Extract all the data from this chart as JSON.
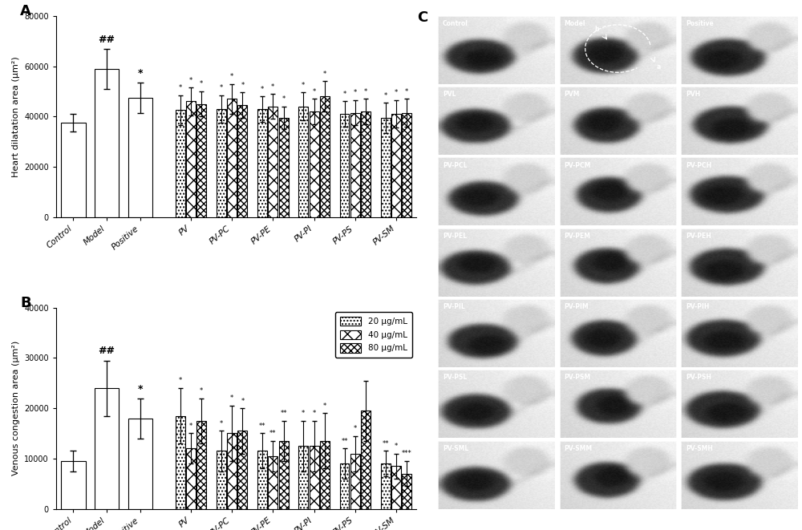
{
  "chart_A": {
    "ylabel": "Heart dilatation area (μm²)",
    "ylim": [
      0,
      80000
    ],
    "yticks": [
      0,
      20000,
      40000,
      60000,
      80000
    ],
    "single_bars": {
      "Control": {
        "mean": 37500,
        "err": 3500,
        "sig": ""
      },
      "Model": {
        "mean": 59000,
        "err": 8000,
        "sig": "##"
      },
      "Positive": {
        "mean": 47500,
        "err": 6000,
        "sig": "*"
      }
    },
    "group_bars": {
      "PV": {
        "low": 42500,
        "mid": 46000,
        "high": 45000,
        "err_low": 6000,
        "err_mid": 5500,
        "err_high": 5000
      },
      "PV-PC": {
        "low": 43000,
        "mid": 47000,
        "high": 44500,
        "err_low": 5500,
        "err_mid": 6000,
        "err_high": 5000
      },
      "PV-PE": {
        "low": 43000,
        "mid": 44000,
        "high": 39500,
        "err_low": 5000,
        "err_mid": 5000,
        "err_high": 4500
      },
      "PV-PI": {
        "low": 44000,
        "mid": 42000,
        "high": 48000,
        "err_low": 5500,
        "err_mid": 5000,
        "err_high": 6000
      },
      "PV-PS": {
        "low": 41000,
        "mid": 41500,
        "high": 42000,
        "err_low": 5000,
        "err_mid": 5000,
        "err_high": 5000
      },
      "PV-SM": {
        "low": 39500,
        "mid": 41000,
        "high": 41500,
        "err_low": 6000,
        "err_mid": 5500,
        "err_high": 5500
      }
    },
    "group_sigs": {
      "PV": [
        "*",
        "*",
        "*"
      ],
      "PV-PC": [
        "*",
        "*",
        "*"
      ],
      "PV-PE": [
        "*",
        "*",
        "*"
      ],
      "PV-PI": [
        "*",
        "*",
        "*"
      ],
      "PV-PS": [
        "*",
        "*",
        "*"
      ],
      "PV-SM": [
        "*",
        "*",
        "*"
      ]
    }
  },
  "chart_B": {
    "ylabel": "Venous congestion area (μm²)",
    "ylim": [
      0,
      40000
    ],
    "yticks": [
      0,
      10000,
      20000,
      30000,
      40000
    ],
    "single_bars": {
      "Control": {
        "mean": 9500,
        "err": 2000,
        "sig": ""
      },
      "Model": {
        "mean": 24000,
        "err": 5500,
        "sig": "##"
      },
      "Positive": {
        "mean": 18000,
        "err": 4000,
        "sig": "*"
      }
    },
    "group_bars": {
      "PV": {
        "low": 18500,
        "mid": 12000,
        "high": 17500,
        "err_low": 5500,
        "err_mid": 3000,
        "err_high": 4500
      },
      "PV-PC": {
        "low": 11500,
        "mid": 15000,
        "high": 15500,
        "err_low": 4000,
        "err_mid": 5500,
        "err_high": 4500
      },
      "PV-PE": {
        "low": 11500,
        "mid": 10500,
        "high": 13500,
        "err_low": 3500,
        "err_mid": 3000,
        "err_high": 4000
      },
      "PV-PI": {
        "low": 12500,
        "mid": 12500,
        "high": 13500,
        "err_low": 5000,
        "err_mid": 5000,
        "err_high": 5500
      },
      "PV-PS": {
        "low": 9000,
        "mid": 11000,
        "high": 19500,
        "err_low": 3000,
        "err_mid": 3500,
        "err_high": 6000
      },
      "PV-SM": {
        "low": 9000,
        "mid": 8500,
        "high": 7000,
        "err_low": 2500,
        "err_mid": 2500,
        "err_high": 2500
      }
    },
    "group_sigs": {
      "PV": [
        "*",
        "*",
        "*"
      ],
      "PV-PC": [
        "*",
        "*",
        "*"
      ],
      "PV-PE": [
        "**",
        "**",
        "**"
      ],
      "PV-PI": [
        "*",
        "*",
        "*"
      ],
      "PV-PS": [
        "**",
        "*",
        ""
      ],
      "PV-SM": [
        "**",
        "*",
        "***"
      ]
    }
  },
  "legend_labels": [
    "20 μg/mL",
    "40 μg/mL",
    "80 μg/mL"
  ],
  "hatch_patterns": [
    "....",
    "xx",
    "xxxx"
  ],
  "edgecolor": "black",
  "panel_C_labels": [
    [
      "Control",
      "Model",
      "Positive"
    ],
    [
      "PVL",
      "PVM",
      "PVH"
    ],
    [
      "PV-PCL",
      "PV-PCM",
      "PV-PCH"
    ],
    [
      "PV-PEL",
      "PV-PEM",
      "PV-PEH"
    ],
    [
      "PV-PIL",
      "PV-PIM",
      "PV-PIH"
    ],
    [
      "PV-PSL",
      "PV-PSM",
      "PV-PSH"
    ],
    [
      "PV-SML",
      "PV-SMM",
      "PV-SMH"
    ]
  ]
}
